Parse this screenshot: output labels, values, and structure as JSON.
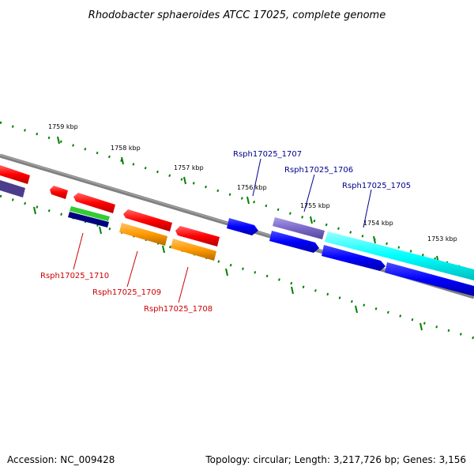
{
  "title": "Rhodobacter sphaeroides ATCC 17025, complete genome",
  "footer": {
    "accession": "Accession: NC_009428",
    "summary": "Topology: circular; Length: 3,217,726 bp; Genes: 3,156"
  },
  "ticks": [
    {
      "label": "1759 kbp"
    },
    {
      "label": "1758 kbp"
    },
    {
      "label": "1757 kbp"
    },
    {
      "label": "1756 kbp"
    },
    {
      "label": "1755 kbp"
    },
    {
      "label": "1754 kbp"
    },
    {
      "label": "1753 kbp"
    }
  ],
  "gene_labels": {
    "g1707": "Rsph17025_1707",
    "g1706": "Rsph17025_1706",
    "g1705": "Rsph17025_1705",
    "g1710": "Rsph17025_1710",
    "g1709": "Rsph17025_1709",
    "g1708": "Rsph17025_1708"
  },
  "colors": {
    "red": "#ff0000",
    "orange": "#ff9900",
    "blue": "#0000ff",
    "navy": "#000080",
    "green": "#33cc33",
    "purple": "#7b68c8",
    "dark_purple": "#4b3c8c",
    "cyan": "#00ffff",
    "backbone": "#808080",
    "tick": "#008000"
  }
}
